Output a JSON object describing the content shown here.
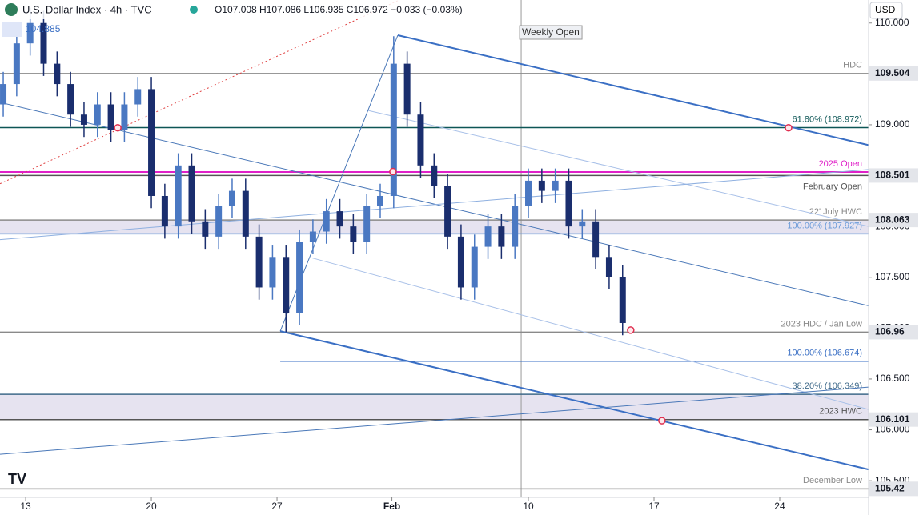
{
  "chart_data": {
    "type": "candlestick",
    "title": "U.S. Dollar Index · 4h · TVC",
    "ohlc_text": "O107.008 H107.086 L106.935 C106.972 −0.033 (−0.03%)",
    "indicator_text": "104.885",
    "currency": "USD",
    "annotation": "Weekly Open",
    "annotation_x": 40.6,
    "up_color": "#4a78c2",
    "down_color": "#1a2e6e",
    "xlim": [
      11.57,
      59.95
    ],
    "ylim": [
      105.336,
      110.226
    ],
    "xticks": [
      13,
      20,
      27,
      {
        "value": 33.4,
        "label": "Feb"
      },
      {
        "value": 41,
        "label": "10"
      },
      {
        "value": 48,
        "label": "17"
      },
      {
        "value": 55,
        "label": "24"
      }
    ],
    "yticks": [
      {
        "value": 110,
        "label": "110.000"
      },
      {
        "value": 109.5,
        "label": "109.500"
      },
      {
        "value": 109,
        "label": "109.000"
      },
      {
        "value": 108.5,
        "label": "108.500"
      },
      {
        "value": 108,
        "label": "108.000"
      },
      {
        "value": 107.5,
        "label": "107.500"
      },
      {
        "value": 107,
        "label": "107.000"
      },
      {
        "value": 106.5,
        "label": "106.500"
      },
      {
        "value": 106,
        "label": "106.000"
      },
      {
        "value": 105.5,
        "label": "105.500"
      }
    ],
    "x": [
      11.75,
      12.5,
      13.25,
      14,
      14.75,
      15.5,
      16.25,
      17,
      17.75,
      18.5,
      19.25,
      20,
      20.75,
      21.5,
      22.25,
      23,
      23.75,
      24.5,
      25.25,
      26,
      26.75,
      27.5,
      28.25,
      29,
      29.75,
      30.5,
      31.25,
      32,
      32.75,
      33.5,
      34.25,
      35,
      35.75,
      36.5,
      37.25,
      38,
      38.75,
      39.5,
      40.25,
      41,
      41.75,
      42.5,
      43.25,
      44,
      44.75,
      45.5,
      46.25
    ],
    "open": [
      109.2,
      109.4,
      109.8,
      110.0,
      109.6,
      109.4,
      109.1,
      109.0,
      109.2,
      108.95,
      109.2,
      109.35,
      108.3,
      108.0,
      108.6,
      108.05,
      107.9,
      108.2,
      108.35,
      107.9,
      107.4,
      107.7,
      107.15,
      107.85,
      107.95,
      108.15,
      108.0,
      107.85,
      108.2,
      108.3,
      109.6,
      109.1,
      108.6,
      108.4,
      107.9,
      107.4,
      107.8,
      108.0,
      107.8,
      108.2,
      108.45,
      108.35,
      108.45,
      108.0,
      108.05,
      107.7,
      107.5
    ],
    "high": [
      109.52,
      109.92,
      110.15,
      110.12,
      109.72,
      109.52,
      109.22,
      109.32,
      109.32,
      109.32,
      109.47,
      109.47,
      108.42,
      108.72,
      108.72,
      108.17,
      108.32,
      108.47,
      108.47,
      108.02,
      107.82,
      107.82,
      107.97,
      108.07,
      108.27,
      108.27,
      108.12,
      108.32,
      108.42,
      109.87,
      109.72,
      109.22,
      108.72,
      108.52,
      108.02,
      107.92,
      108.12,
      108.12,
      108.32,
      108.57,
      108.57,
      108.57,
      108.57,
      108.17,
      108.17,
      107.82,
      107.62
    ],
    "low": [
      109.08,
      109.28,
      109.68,
      109.48,
      109.28,
      108.98,
      108.88,
      108.88,
      108.83,
      108.83,
      109.08,
      108.18,
      107.88,
      107.88,
      107.93,
      107.78,
      107.78,
      108.08,
      107.78,
      107.28,
      107.28,
      106.96,
      107.03,
      107.73,
      107.83,
      107.88,
      107.73,
      107.73,
      108.08,
      108.18,
      108.98,
      108.48,
      108.28,
      107.78,
      107.28,
      107.28,
      107.68,
      107.68,
      107.68,
      108.08,
      108.23,
      108.23,
      107.88,
      107.88,
      107.58,
      107.38,
      106.93
    ],
    "close": [
      109.4,
      109.8,
      110.0,
      109.6,
      109.4,
      109.1,
      109.0,
      109.2,
      108.95,
      109.2,
      109.35,
      108.3,
      108.0,
      108.6,
      108.05,
      107.9,
      108.2,
      108.35,
      107.9,
      107.4,
      107.7,
      107.15,
      107.85,
      107.95,
      108.15,
      108.0,
      107.85,
      108.2,
      108.3,
      109.6,
      109.1,
      108.6,
      108.4,
      107.9,
      107.4,
      107.8,
      108.0,
      107.8,
      108.2,
      108.45,
      108.35,
      108.45,
      108.0,
      108.05,
      107.7,
      107.5,
      107.05
    ],
    "levels": [
      {
        "label": "HDC",
        "value": 109.504,
        "color": "#8a8a8a",
        "boxed": true
      },
      {
        "label": "61.80% (108.972)",
        "value": 108.972,
        "color": "#0d5656"
      },
      {
        "label": "2025 Open",
        "value": 108.536,
        "color": "#e020c8"
      },
      {
        "label": "February Open",
        "value": 108.501,
        "color": "#555555",
        "boxed": true
      },
      {
        "label": "22' July HWC",
        "value": 108.063,
        "color": "#8a8a8a",
        "boxed": true,
        "fill_to_next": "#e6e3f0"
      },
      {
        "label": "100.00% (107.927)",
        "value": 107.927,
        "color": "#6a9ad8"
      },
      {
        "label": "2023 HDC / Jan Low",
        "value": 106.96,
        "color": "#8a8a8a",
        "boxed": true
      },
      {
        "label": "100.00% (106.674)",
        "value": 106.674,
        "color": "#3a6fc4",
        "from_x": 27.18
      },
      {
        "label": "38.20% (106.349)",
        "value": 106.349,
        "color": "#3f6a8a",
        "fill_to_next": "#e6e3f0"
      },
      {
        "label": "2023 HWC",
        "value": 106.101,
        "color": "#555555",
        "boxed": true
      },
      {
        "label": "December Low",
        "value": 105.42,
        "color": "#8a8a8a",
        "boxed": true
      }
    ],
    "trendlines": [
      {
        "x": [
          33.73,
          59.95
        ],
        "y": [
          109.88,
          108.8
        ],
        "color": "#3a6fc4",
        "width": 2
      },
      {
        "x": [
          27.18,
          59.95
        ],
        "y": [
          106.97,
          105.61
        ],
        "color": "#3a6fc4",
        "width": 2
      },
      {
        "x": [
          11.57,
          59.95
        ],
        "y": [
          109.22,
          107.22
        ],
        "color": "#4a78b8",
        "width": 1
      },
      {
        "x": [
          27.18,
          33.73
        ],
        "y": [
          106.97,
          109.88
        ],
        "color": "#4a78b8",
        "width": 1
      },
      {
        "x": [
          32.08,
          59.95
        ],
        "y": [
          109.14,
          108.0
        ],
        "color": "#a8c0e8",
        "width": 1
      },
      {
        "x": [
          28.96,
          59.95
        ],
        "y": [
          107.69,
          106.2
        ],
        "color": "#a8c0e8",
        "width": 1
      },
      {
        "x": [
          11.57,
          59.95
        ],
        "y": [
          107.87,
          108.56
        ],
        "color": "#8fb0e0",
        "width": 1
      },
      {
        "x": [
          11.57,
          59.95
        ],
        "y": [
          105.76,
          106.42
        ],
        "color": "#4a78b8",
        "width": 1
      },
      {
        "x": [
          11.57,
          33.86
        ],
        "y": [
          108.42,
          110.23
        ],
        "color": "#e04040",
        "width": 1,
        "dash": true
      }
    ],
    "markers": {
      "x": [
        18.13,
        33.46,
        55.49,
        46.7,
        48.44
      ],
      "y": [
        108.97,
        108.54,
        108.97,
        106.98,
        106.09
      ],
      "color": "#e03050"
    }
  }
}
